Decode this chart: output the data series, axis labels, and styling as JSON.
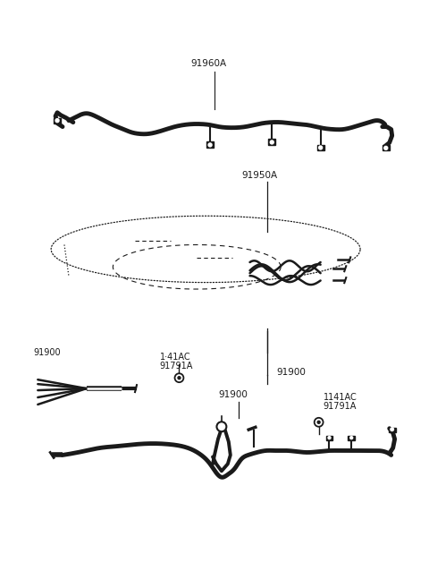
{
  "bg_color": "#ffffff",
  "line_color": "#1a1a1a",
  "text_color": "#1a1a1a",
  "fig_width": 4.8,
  "fig_height": 6.57,
  "dpi": 100,
  "label_91960A": "91960A",
  "label_91950A": "91950A",
  "label_91900": "91900",
  "label_91900b": "91900",
  "label_91900c": "91900",
  "label_1141AC": "1141AC",
  "label_91791A_right": "91791A",
  "label_141AC": "1·41AC",
  "label_91791A_left": "91791A",
  "label_91900_left": "91900",
  "label_91900_right": "91900"
}
